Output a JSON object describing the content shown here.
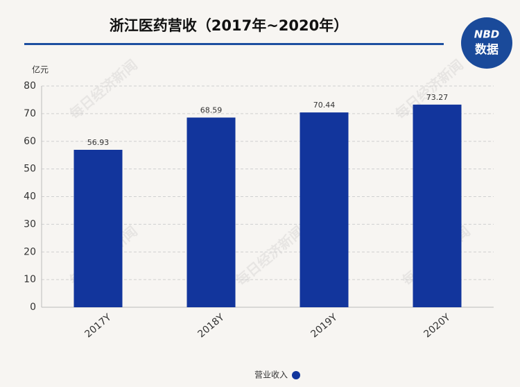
{
  "chart_data": {
    "type": "bar",
    "title": "浙江医药营收（2017年~2020年）",
    "y_label": "亿元",
    "categories": [
      "2017Y",
      "2018Y",
      "2019Y",
      "2020Y"
    ],
    "series": [
      {
        "name": "营业收入",
        "color": "#12359c",
        "values": [
          56.93,
          68.59,
          70.44,
          73.27
        ]
      }
    ],
    "ylim": [
      0,
      80
    ],
    "yticks": [
      0,
      10,
      20,
      30,
      40,
      50,
      60,
      70,
      80
    ],
    "grid": true,
    "legend": "bottom"
  },
  "logo": {
    "brand": "NBD",
    "label": "数据"
  },
  "watermark": "每日经济新闻"
}
